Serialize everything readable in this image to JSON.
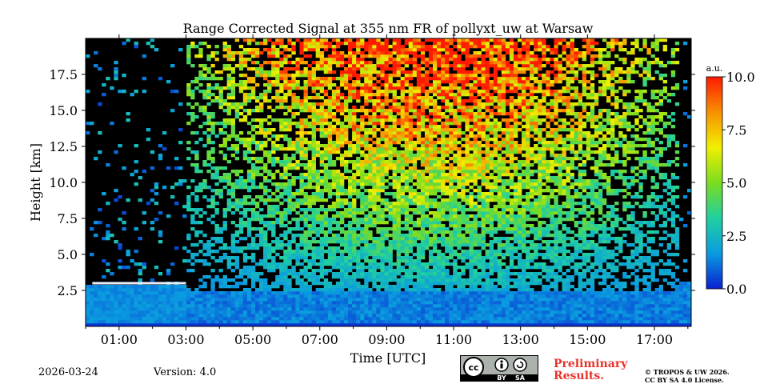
{
  "chart_data": {
    "type": "heatmap",
    "title": "Range Corrected Signal at 355 nm FR of pollyxt_uw at Warsaw",
    "xlabel": "Time [UTC]",
    "ylabel": "Height [km]",
    "xlim_hours": [
      0.0,
      18.1
    ],
    "ylim_km": [
      0.0,
      20.0
    ],
    "x_tick_values": [
      1,
      3,
      5,
      7,
      9,
      11,
      13,
      15,
      17
    ],
    "x_tick_labels": [
      "01:00",
      "03:00",
      "05:00",
      "07:00",
      "09:00",
      "11:00",
      "13:00",
      "15:00",
      "17:00"
    ],
    "y_tick_values": [
      2.5,
      5.0,
      7.5,
      10.0,
      12.5,
      15.0,
      17.5
    ],
    "y_tick_labels": [
      "2.5",
      "5.0",
      "7.5",
      "10.0",
      "12.5",
      "15.0",
      "17.5"
    ],
    "colorbar": {
      "unit": "a.u.",
      "range": [
        0.0,
        10.0
      ],
      "tick_values": [
        0.0,
        2.5,
        5.0,
        7.5,
        10.0
      ],
      "tick_labels": [
        "0.0",
        "2.5",
        "5.0",
        "7.5",
        "10.0"
      ],
      "colormap": [
        "#0a1fd0",
        "#0a9be0",
        "#20d0a0",
        "#7adc20",
        "#f0f000",
        "#f89000",
        "#ff1a00"
      ]
    },
    "features": {
      "boundary_layer_top_km": 3.0,
      "boundary_layer_end_hour": 3.0,
      "no_data_start_hour": 0.0,
      "no_data_end_hour": 18.1
    }
  },
  "footer": {
    "date": "2026-03-24",
    "version": "Version: 4.0",
    "preliminary_line1": "Preliminary",
    "preliminary_line2": "Results.",
    "copyright_line1": "© TROPOS & UW 2026.",
    "copyright_line2": "CC BY SA 4.0 License.",
    "license_badge": {
      "cc": "cc",
      "by": "BY",
      "sa": "SA"
    }
  }
}
